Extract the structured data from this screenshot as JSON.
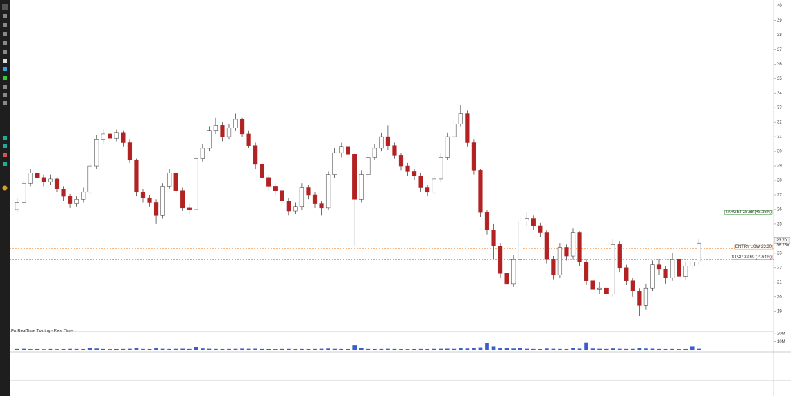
{
  "chart_data": {
    "type": "candlestick",
    "source": "ProRealTime Trading - Real Time",
    "open": [
      26.0,
      26.5,
      27.8,
      28.5,
      28.2,
      27.9,
      28.1,
      27.4,
      26.9,
      26.4,
      26.7,
      27.2,
      29.0,
      30.8,
      31.2,
      30.9,
      31.3,
      30.6,
      29.4,
      27.2,
      26.8,
      26.5,
      25.6,
      27.6,
      28.5,
      27.3,
      26.1,
      26.0,
      29.5,
      30.2,
      31.4,
      31.8,
      31.0,
      31.6,
      32.2,
      31.2,
      30.4,
      29.1,
      28.2,
      27.6,
      27.3,
      26.6,
      25.9,
      26.2,
      27.5,
      27.0,
      26.4,
      26.1,
      28.4,
      29.9,
      30.3,
      29.8,
      26.7,
      28.4,
      29.6,
      30.2,
      31.0,
      30.4,
      29.7,
      29.0,
      28.6,
      28.3,
      27.5,
      27.2,
      28.1,
      29.6,
      31.0,
      31.9,
      32.6,
      30.6,
      28.7,
      25.8,
      24.6,
      23.5,
      21.6,
      20.9,
      22.6,
      25.2,
      25.4,
      24.9,
      24.4,
      22.6,
      21.5,
      23.4,
      22.8,
      24.4,
      22.4,
      21.1,
      20.5,
      20.6,
      20.2,
      23.6,
      22.0,
      21.1,
      20.4,
      19.4,
      20.6,
      22.2,
      21.9,
      21.3,
      22.6,
      21.4,
      22.1,
      22.4
    ],
    "high": [
      26.8,
      28.0,
      28.8,
      28.7,
      28.4,
      28.4,
      28.2,
      27.6,
      27.1,
      26.9,
      27.5,
      29.2,
      31.1,
      31.5,
      31.3,
      31.5,
      31.4,
      30.8,
      29.5,
      27.4,
      27.0,
      26.7,
      27.8,
      28.8,
      28.6,
      27.5,
      26.4,
      29.7,
      30.5,
      31.7,
      32.3,
      32.0,
      31.9,
      32.6,
      32.3,
      31.4,
      30.6,
      29.3,
      28.4,
      27.8,
      27.5,
      26.8,
      26.5,
      27.8,
      27.7,
      27.2,
      26.6,
      28.6,
      30.2,
      30.6,
      30.5,
      29.9,
      28.7,
      29.9,
      30.5,
      31.3,
      31.8,
      30.6,
      29.9,
      29.2,
      28.8,
      28.5,
      27.7,
      28.4,
      29.9,
      31.3,
      32.2,
      33.2,
      32.8,
      30.8,
      28.8,
      26.0,
      25.0,
      23.7,
      21.8,
      22.9,
      25.5,
      25.8,
      25.6,
      25.1,
      24.6,
      22.8,
      23.7,
      23.6,
      24.7,
      24.5,
      22.6,
      21.3,
      21.0,
      20.8,
      24.0,
      23.8,
      22.2,
      21.3,
      20.6,
      20.9,
      22.5,
      22.6,
      22.1,
      23.0,
      22.8,
      22.4,
      22.6,
      24.0
    ],
    "low": [
      25.8,
      26.3,
      27.6,
      27.9,
      27.6,
      27.7,
      27.2,
      26.6,
      26.1,
      26.2,
      26.5,
      27.0,
      28.8,
      30.5,
      30.6,
      30.7,
      30.3,
      29.2,
      26.9,
      26.5,
      26.2,
      25.0,
      25.4,
      27.4,
      27.0,
      25.9,
      25.7,
      25.9,
      29.3,
      30.0,
      31.2,
      30.7,
      30.8,
      31.4,
      31.0,
      30.2,
      28.8,
      28.0,
      27.3,
      27.0,
      26.3,
      25.6,
      25.7,
      26.0,
      26.7,
      26.1,
      25.6,
      26.0,
      28.2,
      29.6,
      29.5,
      23.5,
      26.5,
      28.2,
      29.4,
      30.0,
      30.1,
      29.5,
      28.7,
      28.3,
      28.0,
      27.2,
      26.9,
      27.0,
      27.9,
      29.4,
      30.8,
      31.7,
      30.3,
      28.4,
      25.5,
      24.3,
      22.6,
      21.3,
      20.4,
      20.7,
      22.4,
      24.9,
      24.6,
      24.1,
      22.3,
      21.2,
      21.3,
      22.5,
      22.6,
      22.1,
      20.8,
      20.0,
      20.2,
      19.8,
      20.0,
      21.7,
      20.8,
      20.0,
      18.7,
      19.1,
      20.4,
      21.5,
      20.9,
      21.1,
      21.0,
      21.2,
      21.9,
      22.2
    ],
    "close": [
      26.5,
      27.8,
      28.5,
      28.2,
      27.9,
      28.1,
      27.4,
      26.9,
      26.4,
      26.7,
      27.2,
      29.0,
      30.8,
      31.2,
      30.9,
      31.3,
      30.6,
      29.4,
      27.2,
      26.8,
      26.5,
      25.6,
      27.6,
      28.5,
      27.3,
      26.1,
      26.0,
      29.5,
      30.2,
      31.4,
      31.8,
      31.0,
      31.6,
      32.2,
      31.2,
      30.4,
      29.1,
      28.2,
      27.6,
      27.3,
      26.6,
      25.9,
      26.2,
      27.5,
      27.0,
      26.4,
      26.1,
      28.4,
      29.9,
      30.3,
      29.8,
      26.7,
      28.4,
      29.6,
      30.2,
      31.0,
      30.4,
      29.7,
      29.0,
      28.6,
      28.3,
      27.5,
      27.2,
      28.1,
      29.6,
      31.0,
      31.9,
      32.6,
      30.6,
      28.7,
      25.8,
      24.6,
      23.5,
      21.6,
      20.9,
      22.6,
      25.2,
      25.4,
      24.9,
      24.4,
      22.6,
      21.5,
      23.4,
      22.8,
      24.4,
      22.4,
      21.1,
      20.5,
      20.6,
      20.2,
      23.6,
      22.0,
      21.1,
      20.4,
      19.4,
      20.6,
      22.2,
      21.9,
      21.3,
      22.6,
      21.4,
      22.1,
      22.4,
      23.7
    ],
    "up_color": "#ffffff",
    "down_color": "#b32222",
    "outline_color": "#333333",
    "ylim": [
      17.7,
      40.4
    ],
    "yticks": [
      19,
      20,
      21,
      22,
      23,
      24,
      25,
      26,
      27,
      28,
      29,
      30,
      31,
      32,
      33,
      34,
      35,
      36,
      37,
      38,
      39,
      40
    ],
    "levels": [
      {
        "label": "TARGET 25.68 (+8.35%)",
        "value": 25.68,
        "color": "#2a8a2a"
      },
      {
        "label": "ENTRY LOW 23.30",
        "value": 23.3,
        "color": "#f08a3c"
      },
      {
        "label": "STOP 22.60 (-4.64%)",
        "value": 22.6,
        "color": "#d43030"
      }
    ],
    "last_price_label": "23.70",
    "timer": "36:25m",
    "volume": {
      "values": [
        1.0,
        1.2,
        0.8,
        0.9,
        0.7,
        1.0,
        0.8,
        0.9,
        1.1,
        1.0,
        0.9,
        2.5,
        1.5,
        1.0,
        0.8,
        0.9,
        1.0,
        1.2,
        1.8,
        1.0,
        0.9,
        2.0,
        1.2,
        1.0,
        1.1,
        1.3,
        1.0,
        3.5,
        1.6,
        1.2,
        1.0,
        0.9,
        1.0,
        1.1,
        1.4,
        1.2,
        1.3,
        1.0,
        0.9,
        0.8,
        1.0,
        1.1,
        0.9,
        1.0,
        0.9,
        1.0,
        1.2,
        1.5,
        1.1,
        1.0,
        0.9,
        6.0,
        1.8,
        1.0,
        0.9,
        1.0,
        1.2,
        1.0,
        0.9,
        0.8,
        0.9,
        1.0,
        0.9,
        1.1,
        1.2,
        1.3,
        1.1,
        2.0,
        1.5,
        2.5,
        3.0,
        8.0,
        4.0,
        2.5,
        1.8,
        1.5,
        2.0,
        1.2,
        1.0,
        0.9,
        1.5,
        1.2,
        1.0,
        0.9,
        2.0,
        1.4,
        9.0,
        1.5,
        1.2,
        1.0,
        1.6,
        1.2,
        1.0,
        1.1,
        1.8,
        1.5,
        1.3,
        1.0,
        0.9,
        1.0,
        0.8,
        0.9,
        4.0,
        1.2
      ],
      "color": "#3a5fcd",
      "ylim": [
        0,
        21
      ],
      "yticks": [
        {
          "value": 20,
          "label": "20M"
        },
        {
          "value": 10,
          "label": "10M"
        }
      ]
    }
  }
}
